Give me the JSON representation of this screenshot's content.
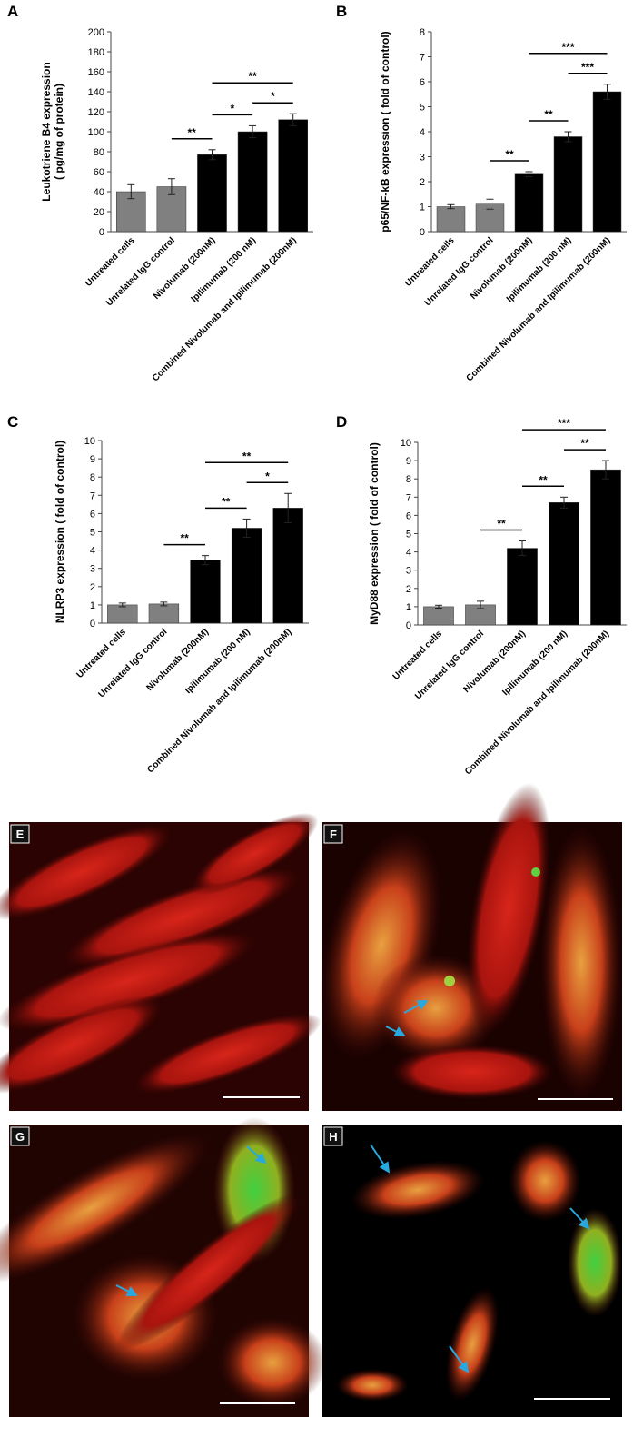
{
  "chart_data": [
    {
      "type": "bar",
      "panel_label": "A",
      "ylabel": [
        "Leukotriene B4 expression",
        "( pg/mg of protein)"
      ],
      "categories": [
        "Untreated cells",
        "Unrelated IgG control",
        "Nivolumab (200nM)",
        "Ipilimumab (200 nM)",
        "Combined Nivolumab and Ipilimumab (200nM)"
      ],
      "values": [
        40,
        45,
        77,
        100,
        112
      ],
      "errors": [
        7,
        8,
        5,
        6,
        6
      ],
      "colors": [
        "#808080",
        "#808080",
        "#000000",
        "#000000",
        "#000000"
      ],
      "ylim": [
        0,
        200
      ],
      "yticks": [
        0,
        20,
        40,
        60,
        80,
        100,
        120,
        140,
        160,
        180,
        200
      ],
      "annotations": [
        {
          "label": "**",
          "from": 1,
          "to": 2
        },
        {
          "label": "*",
          "from": 2,
          "to": 3
        },
        {
          "label": "*",
          "from": 3,
          "to": 4
        },
        {
          "label": "**",
          "from": 2,
          "to": 4
        }
      ]
    },
    {
      "type": "bar",
      "panel_label": "B",
      "ylabel": [
        "p65/NF-kB expression ( fold of control)"
      ],
      "categories": [
        "Untreated cells",
        "Unrelated IgG control",
        "Nivolumab (200nM)",
        "Ipilimumab (200 nM)",
        "Combined Nivolumab and Ipilimumab (200nM)"
      ],
      "values": [
        1.0,
        1.1,
        2.3,
        3.8,
        5.6
      ],
      "errors": [
        0.08,
        0.2,
        0.1,
        0.2,
        0.3
      ],
      "colors": [
        "#808080",
        "#808080",
        "#000000",
        "#000000",
        "#000000"
      ],
      "ylim": [
        0,
        8
      ],
      "yticks": [
        0,
        1,
        2,
        3,
        4,
        5,
        6,
        7,
        8
      ],
      "annotations": [
        {
          "label": "**",
          "from": 1,
          "to": 2
        },
        {
          "label": "**",
          "from": 2,
          "to": 3
        },
        {
          "label": "***",
          "from": 3,
          "to": 4
        },
        {
          "label": "***",
          "from": 2,
          "to": 4
        }
      ]
    },
    {
      "type": "bar",
      "panel_label": "C",
      "ylabel": [
        "NLRP3 expression ( fold of control)"
      ],
      "categories": [
        "Untreated cells",
        "Unrelated IgG control",
        "Nivolumab (200nM)",
        "Ipilimumab (200 nM)",
        "Combined Nivolumab and Ipilimumab (200nM)"
      ],
      "values": [
        1.0,
        1.05,
        3.45,
        5.2,
        6.3
      ],
      "errors": [
        0.1,
        0.1,
        0.25,
        0.5,
        0.8
      ],
      "colors": [
        "#808080",
        "#808080",
        "#000000",
        "#000000",
        "#000000"
      ],
      "ylim": [
        0,
        10
      ],
      "yticks": [
        0,
        1,
        2,
        3,
        4,
        5,
        6,
        7,
        8,
        9,
        10
      ],
      "annotations": [
        {
          "label": "**",
          "from": 1,
          "to": 2
        },
        {
          "label": "**",
          "from": 2,
          "to": 3
        },
        {
          "label": "*",
          "from": 3,
          "to": 4
        },
        {
          "label": "**",
          "from": 2,
          "to": 4
        }
      ]
    },
    {
      "type": "bar",
      "panel_label": "D",
      "ylabel": [
        "MyD88 expression ( fold of control)"
      ],
      "categories": [
        "Untreated cells",
        "Unrelated IgG control",
        "Nivolumab (200nM)",
        "Ipilimumab (200 nM)",
        "Combined Nivolumab and Ipilimumab (200nM)"
      ],
      "values": [
        1.0,
        1.1,
        4.2,
        6.7,
        8.5
      ],
      "errors": [
        0.08,
        0.2,
        0.4,
        0.3,
        0.5
      ],
      "colors": [
        "#808080",
        "#808080",
        "#000000",
        "#000000",
        "#000000"
      ],
      "ylim": [
        0,
        10
      ],
      "yticks": [
        0,
        1,
        2,
        3,
        4,
        5,
        6,
        7,
        8,
        9,
        10
      ],
      "annotations": [
        {
          "label": "**",
          "from": 1,
          "to": 2
        },
        {
          "label": "**",
          "from": 2,
          "to": 3
        },
        {
          "label": "**",
          "from": 3,
          "to": 4
        },
        {
          "label": "***",
          "from": 2,
          "to": 4
        }
      ]
    }
  ],
  "image_panels": [
    {
      "label": "E"
    },
    {
      "label": "F"
    },
    {
      "label": "G"
    },
    {
      "label": "H"
    }
  ]
}
